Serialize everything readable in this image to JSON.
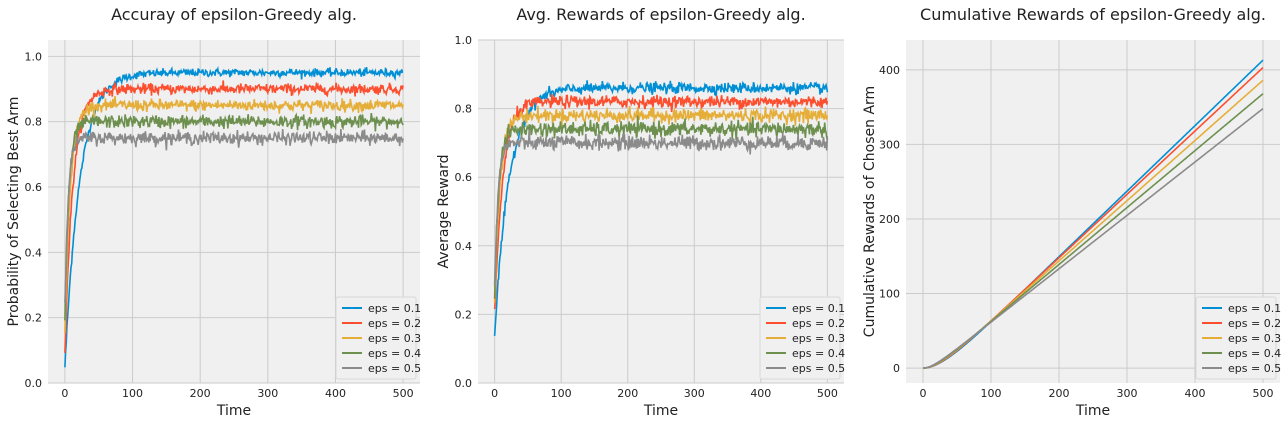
{
  "colors": {
    "panel_bg": "#f0f0f0",
    "grid": "#cbcbcb",
    "legend_bg": "#f0f0f0",
    "series": [
      "#008fd5",
      "#fc4f30",
      "#e5ae38",
      "#6d904f",
      "#8b8b8b"
    ]
  },
  "chart_data": [
    {
      "type": "line",
      "title": "Accuray of epsilon-Greedy alg.",
      "xlabel": "Time",
      "ylabel": "Probability of Selecting Best Arm",
      "xlim": [
        -25,
        525
      ],
      "ylim": [
        0,
        1.05
      ],
      "xticks": [
        0,
        100,
        200,
        300,
        400,
        500
      ],
      "yticks": [
        0.0,
        0.2,
        0.4,
        0.6,
        0.8,
        1.0
      ],
      "ytick_format": 1,
      "grid": true,
      "legend_position": "lower-right",
      "series": [
        {
          "name": "eps = 0.1",
          "start": 0.05,
          "plateau": 0.95,
          "tau": 22,
          "noise": 0.006
        },
        {
          "name": "eps = 0.2",
          "start": 0.1,
          "plateau": 0.9,
          "tau": 12,
          "noise": 0.008
        },
        {
          "name": "eps = 0.3",
          "start": 0.15,
          "plateau": 0.85,
          "tau": 8,
          "noise": 0.009
        },
        {
          "name": "eps = 0.4",
          "start": 0.2,
          "plateau": 0.8,
          "tau": 6,
          "noise": 0.01
        },
        {
          "name": "eps = 0.5",
          "start": 0.25,
          "plateau": 0.75,
          "tau": 5,
          "noise": 0.01
        }
      ]
    },
    {
      "type": "line",
      "title": "Avg. Rewards of epsilon-Greedy alg.",
      "xlabel": "Time",
      "ylabel": "Average Reward",
      "xlim": [
        -25,
        525
      ],
      "ylim": [
        0,
        1.0
      ],
      "xticks": [
        0,
        100,
        200,
        300,
        400,
        500
      ],
      "yticks": [
        0.0,
        0.2,
        0.4,
        0.6,
        0.8,
        1.0
      ],
      "ytick_format": 1,
      "grid": true,
      "legend_position": "lower-right",
      "series": [
        {
          "name": "eps = 0.1",
          "start": 0.14,
          "plateau": 0.86,
          "tau": 22,
          "noise": 0.008
        },
        {
          "name": "eps = 0.2",
          "start": 0.19,
          "plateau": 0.82,
          "tau": 12,
          "noise": 0.009
        },
        {
          "name": "eps = 0.3",
          "start": 0.23,
          "plateau": 0.78,
          "tau": 8,
          "noise": 0.01
        },
        {
          "name": "eps = 0.4",
          "start": 0.25,
          "plateau": 0.74,
          "tau": 6,
          "noise": 0.011
        },
        {
          "name": "eps = 0.5",
          "start": 0.27,
          "plateau": 0.7,
          "tau": 5,
          "noise": 0.011
        }
      ]
    },
    {
      "type": "line",
      "title": "Cumulative Rewards of epsilon-Greedy alg.",
      "xlabel": "Time",
      "ylabel": "Cumulative Rewards of Chosen Arm",
      "xlim": [
        -25,
        525
      ],
      "ylim": [
        -20,
        440
      ],
      "xticks": [
        0,
        100,
        200,
        300,
        400,
        500
      ],
      "yticks": [
        0,
        100,
        200,
        300,
        400
      ],
      "ytick_format": 0,
      "grid": true,
      "legend_position": "lower-right",
      "series": [
        {
          "name": "eps = 0.1",
          "final": 413
        },
        {
          "name": "eps = 0.2",
          "final": 403
        },
        {
          "name": "eps = 0.3",
          "final": 386
        },
        {
          "name": "eps = 0.4",
          "final": 368
        },
        {
          "name": "eps = 0.5",
          "final": 348
        }
      ]
    }
  ]
}
